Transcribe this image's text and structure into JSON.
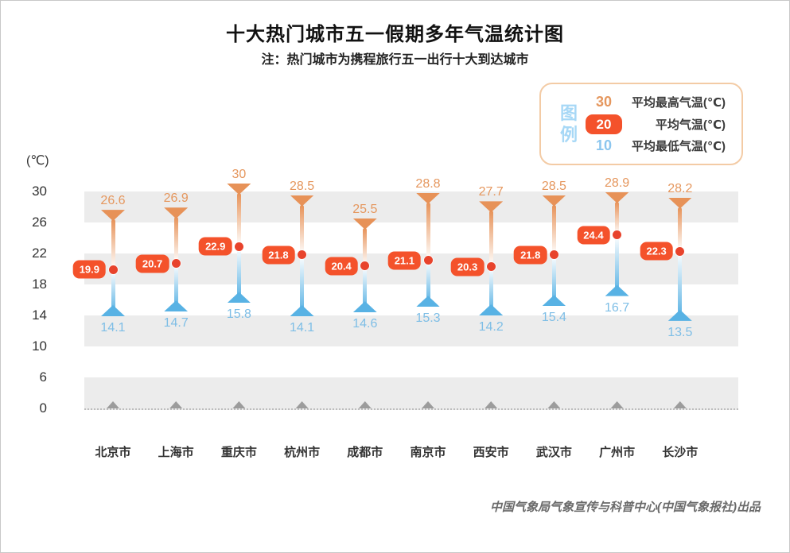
{
  "title": "十大热门城市五一假期多年气温统计图",
  "subtitle": "注：热门城市为携程旅行五一出行十大到达城市",
  "unit_label": "(℃)",
  "footer": "中国气象局气象宣传与科普中心(中国气象报社)出品",
  "legend": {
    "title": "图例",
    "items": [
      {
        "value": "30",
        "label": "平均最高气温(℃)"
      },
      {
        "value": "20",
        "label": "平均气温(℃)"
      },
      {
        "value": "10",
        "label": "平均最低气温(℃)"
      }
    ]
  },
  "colors": {
    "max": "#e5975e",
    "min": "#7ebee6",
    "stem_top": "#e79258",
    "stem_bottom": "#58b2e4",
    "avg_badge": "#f4522b",
    "avg_dot": "#e8432c",
    "band": "#ececec",
    "legend_border": "#f3cba5",
    "legend_title": "#a7d8f6",
    "baseline_marker": "#9c9c9c"
  },
  "chart_data": {
    "type": "range-dumbbell",
    "title": "十大热门城市五一假期多年气温统计图",
    "subtitle": "注：热门城市为携程旅行五一出行十大到达城市",
    "categories": [
      "北京市",
      "上海市",
      "重庆市",
      "杭州市",
      "成都市",
      "南京市",
      "西安市",
      "武汉市",
      "广州市",
      "长沙市"
    ],
    "series": [
      {
        "name": "平均最高气温(℃)",
        "values": [
          26.6,
          26.9,
          30,
          28.5,
          25.5,
          28.8,
          27.7,
          28.5,
          28.9,
          28.2
        ]
      },
      {
        "name": "平均气温(℃)",
        "values": [
          19.9,
          20.7,
          22.9,
          21.8,
          20.4,
          21.1,
          20.3,
          21.8,
          24.4,
          22.3
        ]
      },
      {
        "name": "平均最低气温(℃)",
        "values": [
          14.1,
          14.7,
          15.8,
          14.1,
          14.6,
          15.3,
          14.2,
          15.4,
          16.7,
          13.5
        ]
      }
    ],
    "ylabel": "(℃)",
    "yticks": [
      30,
      26,
      22,
      18,
      14,
      10,
      6,
      0
    ],
    "ylim": [
      0,
      30
    ],
    "grid": "alternating horizontal gray bands between ticks (26-30, 18-22, 10-14, 0-6)",
    "legend_position": "top-right"
  }
}
